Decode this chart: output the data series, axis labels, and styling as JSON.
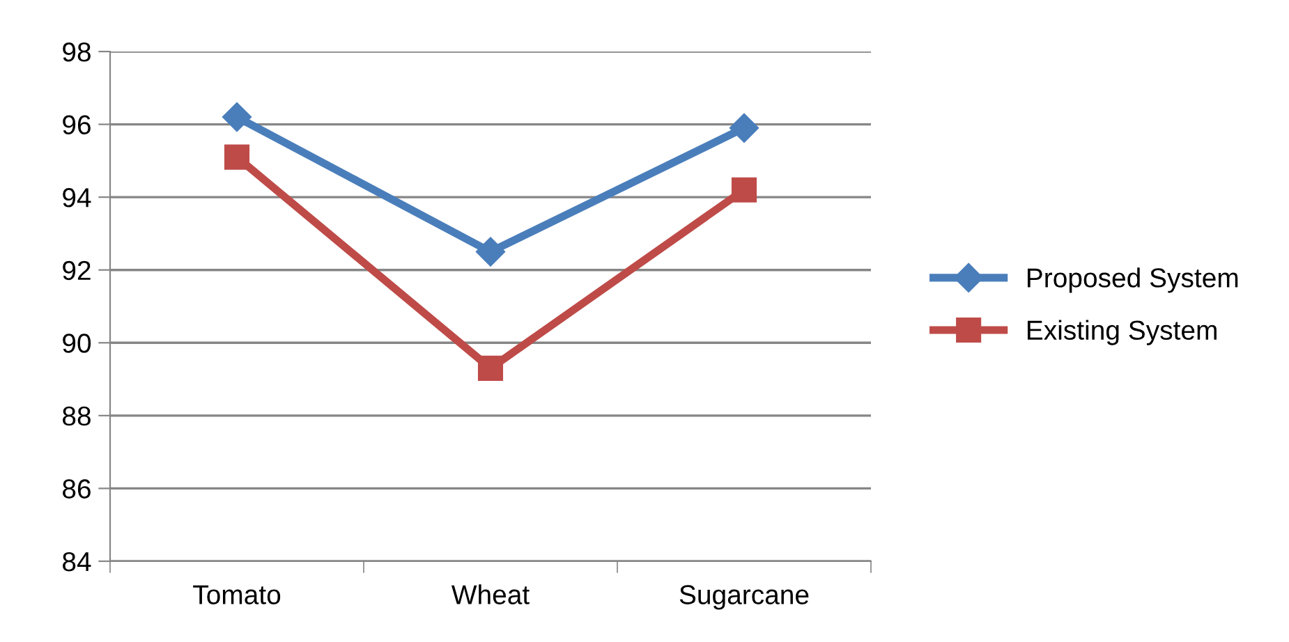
{
  "chart_data": {
    "type": "line",
    "categories": [
      "Tomato",
      "Wheat",
      "Sugarcane"
    ],
    "series": [
      {
        "name": "Proposed System",
        "color": "#4a7ebb",
        "marker": "diamond",
        "values": [
          96.2,
          92.5,
          95.9
        ]
      },
      {
        "name": "Existing System",
        "color": "#be4b48",
        "marker": "square",
        "values": [
          95.1,
          89.3,
          94.2
        ]
      }
    ],
    "ylim": [
      84,
      98
    ],
    "yticks": [
      84,
      86,
      88,
      90,
      92,
      94,
      96,
      98
    ],
    "grid": "y",
    "legend": "right",
    "line_style": "solid"
  }
}
